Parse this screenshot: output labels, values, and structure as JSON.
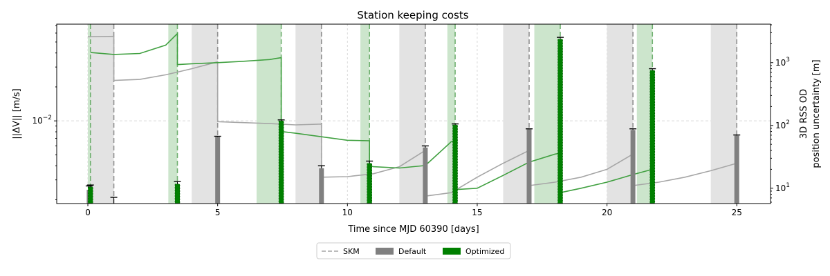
{
  "chart_data": {
    "type": "bar",
    "title": "Station keeping costs",
    "xlabel": "Time since MJD 60390 [days]",
    "ylabel": "||ΔV|| [m/s]",
    "ylabel_right": [
      "3D RSS OD",
      "position uncertainty [m]"
    ],
    "xlim": [
      -1.2,
      26.3
    ],
    "xticks": [
      0,
      5,
      10,
      15,
      20,
      25
    ],
    "ylim": [
      0.00185,
      0.072
    ],
    "yscale": "log",
    "yticks": [
      {
        "value": 0.01,
        "label": "10",
        "exp": "−2"
      }
    ],
    "y2lim": [
      5.7,
      4100
    ],
    "y2scale": "log",
    "y2ticks": [
      {
        "value": 10,
        "label": "10",
        "exp": "1"
      },
      {
        "value": 100,
        "label": "10",
        "exp": "2"
      },
      {
        "value": 1000,
        "label": "10",
        "exp": "3"
      }
    ],
    "grid": true,
    "legend_position": "bottom-center",
    "legend": [
      {
        "label": "SKM",
        "kind": "dashed-line"
      },
      {
        "label": "Default",
        "kind": "patch"
      },
      {
        "label": "Optimized",
        "kind": "patch"
      }
    ],
    "colors": {
      "default": "#808080",
      "optimized": "#008000",
      "default_span": "#e3e3e3",
      "optimized_span": "#cce5cc",
      "default_curve": "#a6a6a6",
      "optimized_curve": "#40a040",
      "grid": "#d9d9d9"
    },
    "skm": {
      "default_days": [
        1,
        5,
        9,
        13,
        17,
        21,
        25
      ],
      "optimized_days": [
        0.1,
        3.45,
        7.45,
        10.85,
        14.15,
        18.2,
        21.75
      ]
    },
    "tracking_windows": {
      "default": [
        [
          0,
          1
        ],
        [
          4,
          5
        ],
        [
          8,
          9
        ],
        [
          12,
          13
        ],
        [
          16,
          17
        ],
        [
          20,
          21
        ],
        [
          24,
          25
        ]
      ],
      "optimized": [
        [
          0,
          0.1
        ],
        [
          3.1,
          3.45
        ],
        [
          6.5,
          7.45
        ],
        [
          10.5,
          10.85
        ],
        [
          13.85,
          14.15
        ],
        [
          17.2,
          18.2
        ],
        [
          21.15,
          21.75
        ]
      ]
    },
    "series": [
      {
        "name": "Default",
        "x": [
          0.05,
          1,
          5,
          9,
          13,
          17,
          21,
          25
        ],
        "values": [
          0.00245,
          0.00185,
          0.0072,
          0.0038,
          0.0058,
          0.0084,
          0.0083,
          0.0074
        ],
        "errors": [
          0.00265,
          0.0021,
          0.0073,
          0.004,
          0.006,
          0.0085,
          0.0085,
          0.0075
        ]
      },
      {
        "name": "Optimized",
        "x": [
          0.1,
          3.45,
          7.45,
          10.85,
          14.15,
          18.2,
          21.75
        ],
        "values": [
          0.0026,
          0.00275,
          0.01,
          0.0042,
          0.0092,
          0.053,
          0.028
        ],
        "errors": [
          0.0027,
          0.0029,
          0.0102,
          0.0044,
          0.0094,
          0.055,
          0.029
        ]
      }
    ],
    "uncertainty_curves": {
      "default": [
        [
          [
            0,
            2580
          ],
          [
            1,
            2620
          ]
        ],
        [
          [
            1,
            520
          ],
          [
            2,
            540
          ],
          [
            3,
            640
          ],
          [
            4,
            800
          ],
          [
            5,
            1030
          ]
        ],
        [
          [
            5,
            115
          ],
          [
            7,
            107
          ],
          [
            8,
            102
          ],
          [
            9,
            105
          ]
        ],
        [
          [
            9,
            15
          ],
          [
            10,
            15.3
          ],
          [
            11,
            17
          ],
          [
            12,
            22
          ],
          [
            13,
            40
          ]
        ],
        [
          [
            13,
            7.5
          ],
          [
            14,
            8.5
          ],
          [
            15,
            15
          ],
          [
            16,
            25
          ],
          [
            17,
            40
          ]
        ],
        [
          [
            17,
            11
          ],
          [
            18,
            12.5
          ],
          [
            19,
            15
          ],
          [
            20,
            20
          ],
          [
            21,
            35
          ]
        ],
        [
          [
            21,
            11
          ],
          [
            22,
            12.5
          ],
          [
            23,
            15
          ],
          [
            24,
            19
          ],
          [
            25,
            25
          ]
        ]
      ],
      "optimized": [
        [
          [
            0.1,
            1450
          ],
          [
            1,
            1350
          ],
          [
            2,
            1400
          ],
          [
            3,
            1900
          ],
          [
            3.45,
            2900
          ]
        ],
        [
          [
            3.45,
            930
          ],
          [
            4,
            960
          ],
          [
            5,
            1000
          ],
          [
            6,
            1050
          ],
          [
            7,
            1120
          ],
          [
            7.45,
            1200
          ]
        ],
        [
          [
            7.45,
            80
          ],
          [
            8,
            75
          ],
          [
            9,
            66
          ],
          [
            10,
            58
          ],
          [
            10.85,
            57
          ]
        ],
        [
          [
            10.85,
            23
          ],
          [
            11,
            22
          ],
          [
            12,
            21
          ],
          [
            13,
            23
          ],
          [
            14,
            55
          ],
          [
            14.15,
            57
          ]
        ],
        [
          [
            14.15,
            9.5
          ],
          [
            15,
            10
          ],
          [
            16,
            16
          ],
          [
            17,
            26
          ],
          [
            18,
            35
          ],
          [
            18.2,
            36
          ]
        ],
        [
          [
            18.2,
            8.5
          ],
          [
            19,
            10
          ],
          [
            20,
            12.5
          ],
          [
            21,
            16.5
          ],
          [
            21.75,
            20
          ]
        ]
      ]
    }
  }
}
